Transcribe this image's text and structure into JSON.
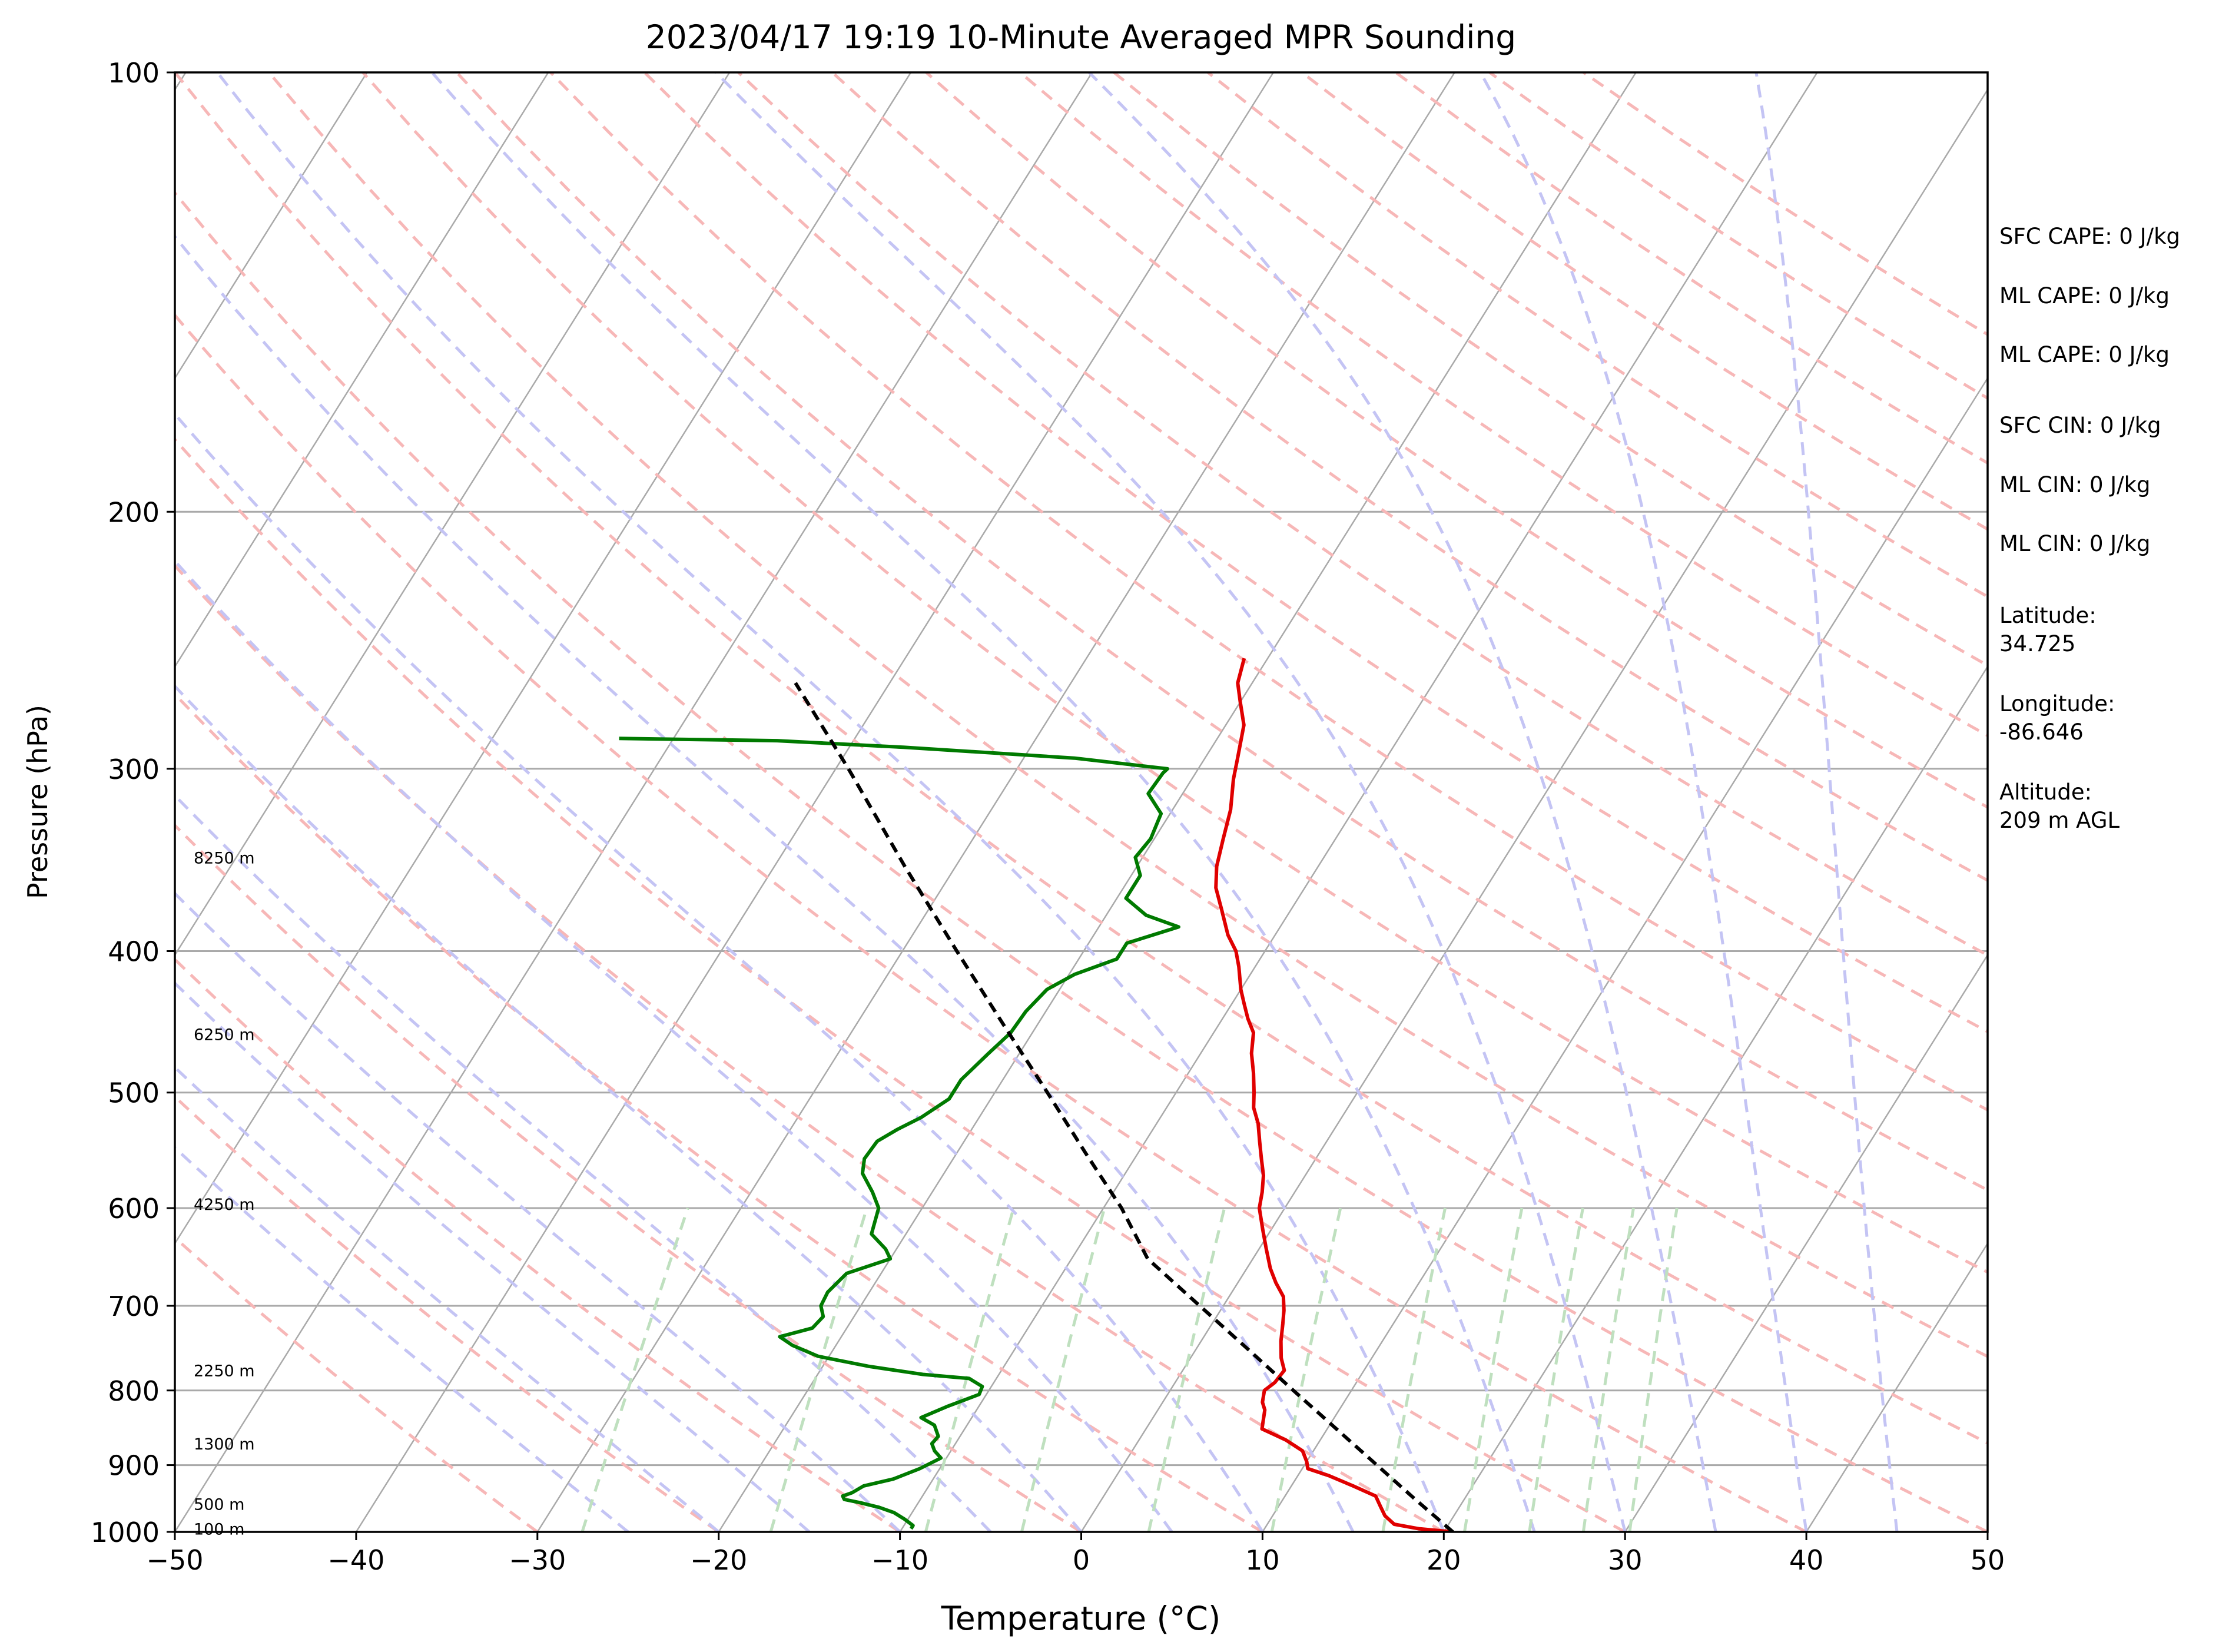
{
  "chart_data": {
    "type": "line",
    "title": "2023/04/17 19:19 10-Minute Averaged MPR Sounding",
    "xlabel": "Temperature (°C)",
    "ylabel": "Pressure (hPa)",
    "xlim": [
      -50,
      50
    ],
    "ylim": [
      1000,
      100
    ],
    "y_scale": "log",
    "grid": true,
    "x_ticks": [
      "−50",
      "−40",
      "−30",
      "−20",
      "−10",
      "0",
      "10",
      "20",
      "30",
      "40",
      "50"
    ],
    "y_ticks": [
      {
        "p": 100,
        "label": "100"
      },
      {
        "p": 200,
        "label": "200"
      },
      {
        "p": 300,
        "label": "300"
      },
      {
        "p": 400,
        "label": "400"
      },
      {
        "p": 500,
        "label": "500"
      },
      {
        "p": 600,
        "label": "600"
      },
      {
        "p": 700,
        "label": "700"
      },
      {
        "p": 800,
        "label": "800"
      },
      {
        "p": 900,
        "label": "900"
      },
      {
        "p": 1000,
        "label": "1000"
      }
    ],
    "series": [
      {
        "key": "temperature",
        "color": "#e00000",
        "points": [
          [
            1000,
            20.5
          ],
          [
            995,
            18.5
          ],
          [
            988,
            17.0
          ],
          [
            975,
            16.2
          ],
          [
            960,
            15.6
          ],
          [
            945,
            15.0
          ],
          [
            930,
            13.4
          ],
          [
            915,
            11.7
          ],
          [
            905,
            10.3
          ],
          [
            895,
            10.0
          ],
          [
            880,
            9.4
          ],
          [
            865,
            8.1
          ],
          [
            850,
            6.4
          ],
          [
            840,
            6.2
          ],
          [
            825,
            5.9
          ],
          [
            815,
            5.5
          ],
          [
            800,
            5.2
          ],
          [
            790,
            5.5
          ],
          [
            775,
            5.6
          ],
          [
            760,
            5.0
          ],
          [
            740,
            4.4
          ],
          [
            720,
            3.9
          ],
          [
            705,
            3.5
          ],
          [
            690,
            3.0
          ],
          [
            675,
            2.1
          ],
          [
            660,
            1.3
          ],
          [
            640,
            0.4
          ],
          [
            620,
            -0.5
          ],
          [
            600,
            -1.4
          ],
          [
            585,
            -1.8
          ],
          [
            570,
            -2.3
          ],
          [
            555,
            -3.0
          ],
          [
            540,
            -3.7
          ],
          [
            525,
            -4.4
          ],
          [
            512,
            -5.2
          ],
          [
            500,
            -5.7
          ],
          [
            485,
            -6.4
          ],
          [
            470,
            -7.2
          ],
          [
            455,
            -7.8
          ],
          [
            445,
            -8.6
          ],
          [
            435,
            -9.3
          ],
          [
            425,
            -10.0
          ],
          [
            410,
            -10.9
          ],
          [
            400,
            -11.6
          ],
          [
            390,
            -12.6
          ],
          [
            375,
            -13.8
          ],
          [
            362,
            -14.9
          ],
          [
            350,
            -15.6
          ],
          [
            335,
            -16.2
          ],
          [
            320,
            -16.8
          ],
          [
            305,
            -17.7
          ],
          [
            295,
            -18.2
          ],
          [
            280,
            -19.0
          ],
          [
            270,
            -20.0
          ],
          [
            262,
            -20.8
          ],
          [
            252,
            -21.3
          ]
        ]
      },
      {
        "key": "dewpoint",
        "color": "#007a00",
        "points": [
          [
            995,
            -9.5
          ],
          [
            990,
            -9.5
          ],
          [
            980,
            -10.2
          ],
          [
            970,
            -11.0
          ],
          [
            962,
            -12.0
          ],
          [
            955,
            -13.2
          ],
          [
            950,
            -14.2
          ],
          [
            945,
            -14.4
          ],
          [
            940,
            -14.0
          ],
          [
            930,
            -13.6
          ],
          [
            920,
            -12.2
          ],
          [
            905,
            -11.1
          ],
          [
            890,
            -10.3
          ],
          [
            880,
            -10.9
          ],
          [
            870,
            -11.3
          ],
          [
            860,
            -11.2
          ],
          [
            845,
            -11.8
          ],
          [
            835,
            -12.8
          ],
          [
            820,
            -11.7
          ],
          [
            805,
            -10.4
          ],
          [
            795,
            -10.5
          ],
          [
            785,
            -11.5
          ],
          [
            780,
            -14.2
          ],
          [
            770,
            -17.5
          ],
          [
            758,
            -20.6
          ],
          [
            745,
            -22.4
          ],
          [
            735,
            -23.4
          ],
          [
            725,
            -21.9
          ],
          [
            712,
            -21.7
          ],
          [
            700,
            -22.2
          ],
          [
            685,
            -22.3
          ],
          [
            665,
            -21.9
          ],
          [
            650,
            -20.0
          ],
          [
            640,
            -20.6
          ],
          [
            625,
            -21.9
          ],
          [
            600,
            -22.4
          ],
          [
            585,
            -23.3
          ],
          [
            568,
            -24.5
          ],
          [
            555,
            -24.9
          ],
          [
            540,
            -24.8
          ],
          [
            530,
            -24.1
          ],
          [
            520,
            -23.2
          ],
          [
            505,
            -22.3
          ],
          [
            490,
            -22.3
          ],
          [
            470,
            -21.7
          ],
          [
            455,
            -21.2
          ],
          [
            440,
            -21.1
          ],
          [
            425,
            -20.7
          ],
          [
            415,
            -19.7
          ],
          [
            405,
            -17.9
          ],
          [
            395,
            -17.9
          ],
          [
            385,
            -15.6
          ],
          [
            378,
            -17.8
          ],
          [
            368,
            -19.5
          ],
          [
            355,
            -19.5
          ],
          [
            345,
            -20.4
          ],
          [
            335,
            -20.2
          ],
          [
            322,
            -20.5
          ],
          [
            312,
            -21.9
          ],
          [
            302,
            -21.8
          ],
          [
            300,
            -21.7
          ],
          [
            295,
            -27.2
          ],
          [
            290,
            -37.0
          ],
          [
            287,
            -44.2
          ],
          [
            286,
            -53.0
          ]
        ]
      },
      {
        "key": "parcel",
        "color": "#000000",
        "dashed": true,
        "points": [
          [
            1000,
            20.5
          ],
          [
            950,
            17.3
          ],
          [
            900,
            14.0
          ],
          [
            850,
            10.5
          ],
          [
            800,
            6.8
          ],
          [
            750,
            2.9
          ],
          [
            700,
            -1.3
          ],
          [
            650,
            -5.8
          ],
          [
            600,
            -9.0
          ],
          [
            550,
            -12.9
          ],
          [
            500,
            -17.1
          ],
          [
            450,
            -21.8
          ],
          [
            400,
            -27.0
          ],
          [
            350,
            -32.8
          ],
          [
            300,
            -39.3
          ],
          [
            262,
            -45.2
          ]
        ]
      }
    ],
    "height_labels": [
      {
        "p": 345,
        "text": "8250 m"
      },
      {
        "p": 456,
        "text": "6250 m"
      },
      {
        "p": 596,
        "text": "4250 m"
      },
      {
        "p": 775,
        "text": "2250 m"
      },
      {
        "p": 870,
        "text": "1300 m"
      },
      {
        "p": 957,
        "text": "500 m"
      },
      {
        "p": 995,
        "text": "100 m"
      }
    ],
    "info": {
      "sfc_cape": "SFC CAPE: 0 J/kg",
      "ml_cape_1": "ML CAPE: 0 J/kg",
      "ml_cape_2": "ML CAPE: 0 J/kg",
      "sfc_cin": "SFC CIN: 0 J/kg",
      "ml_cin_1": "ML CIN: 0 J/kg",
      "ml_cin_2": "ML CIN: 0 J/kg",
      "latitude_label": "Latitude:",
      "latitude_value": "34.725",
      "longitude_label": "Longitude:",
      "longitude_value": "-86.646",
      "altitude_label": "Altitude:",
      "altitude_value": "209 m AGL"
    },
    "colors": {
      "isotherm": "#a9a9a9",
      "isobar": "#a9a9a9",
      "dry_adiabat": "#f7b7b7",
      "moist_adiabat": "#c4c4f4",
      "mixing_ratio": "#bfe0bf"
    }
  }
}
